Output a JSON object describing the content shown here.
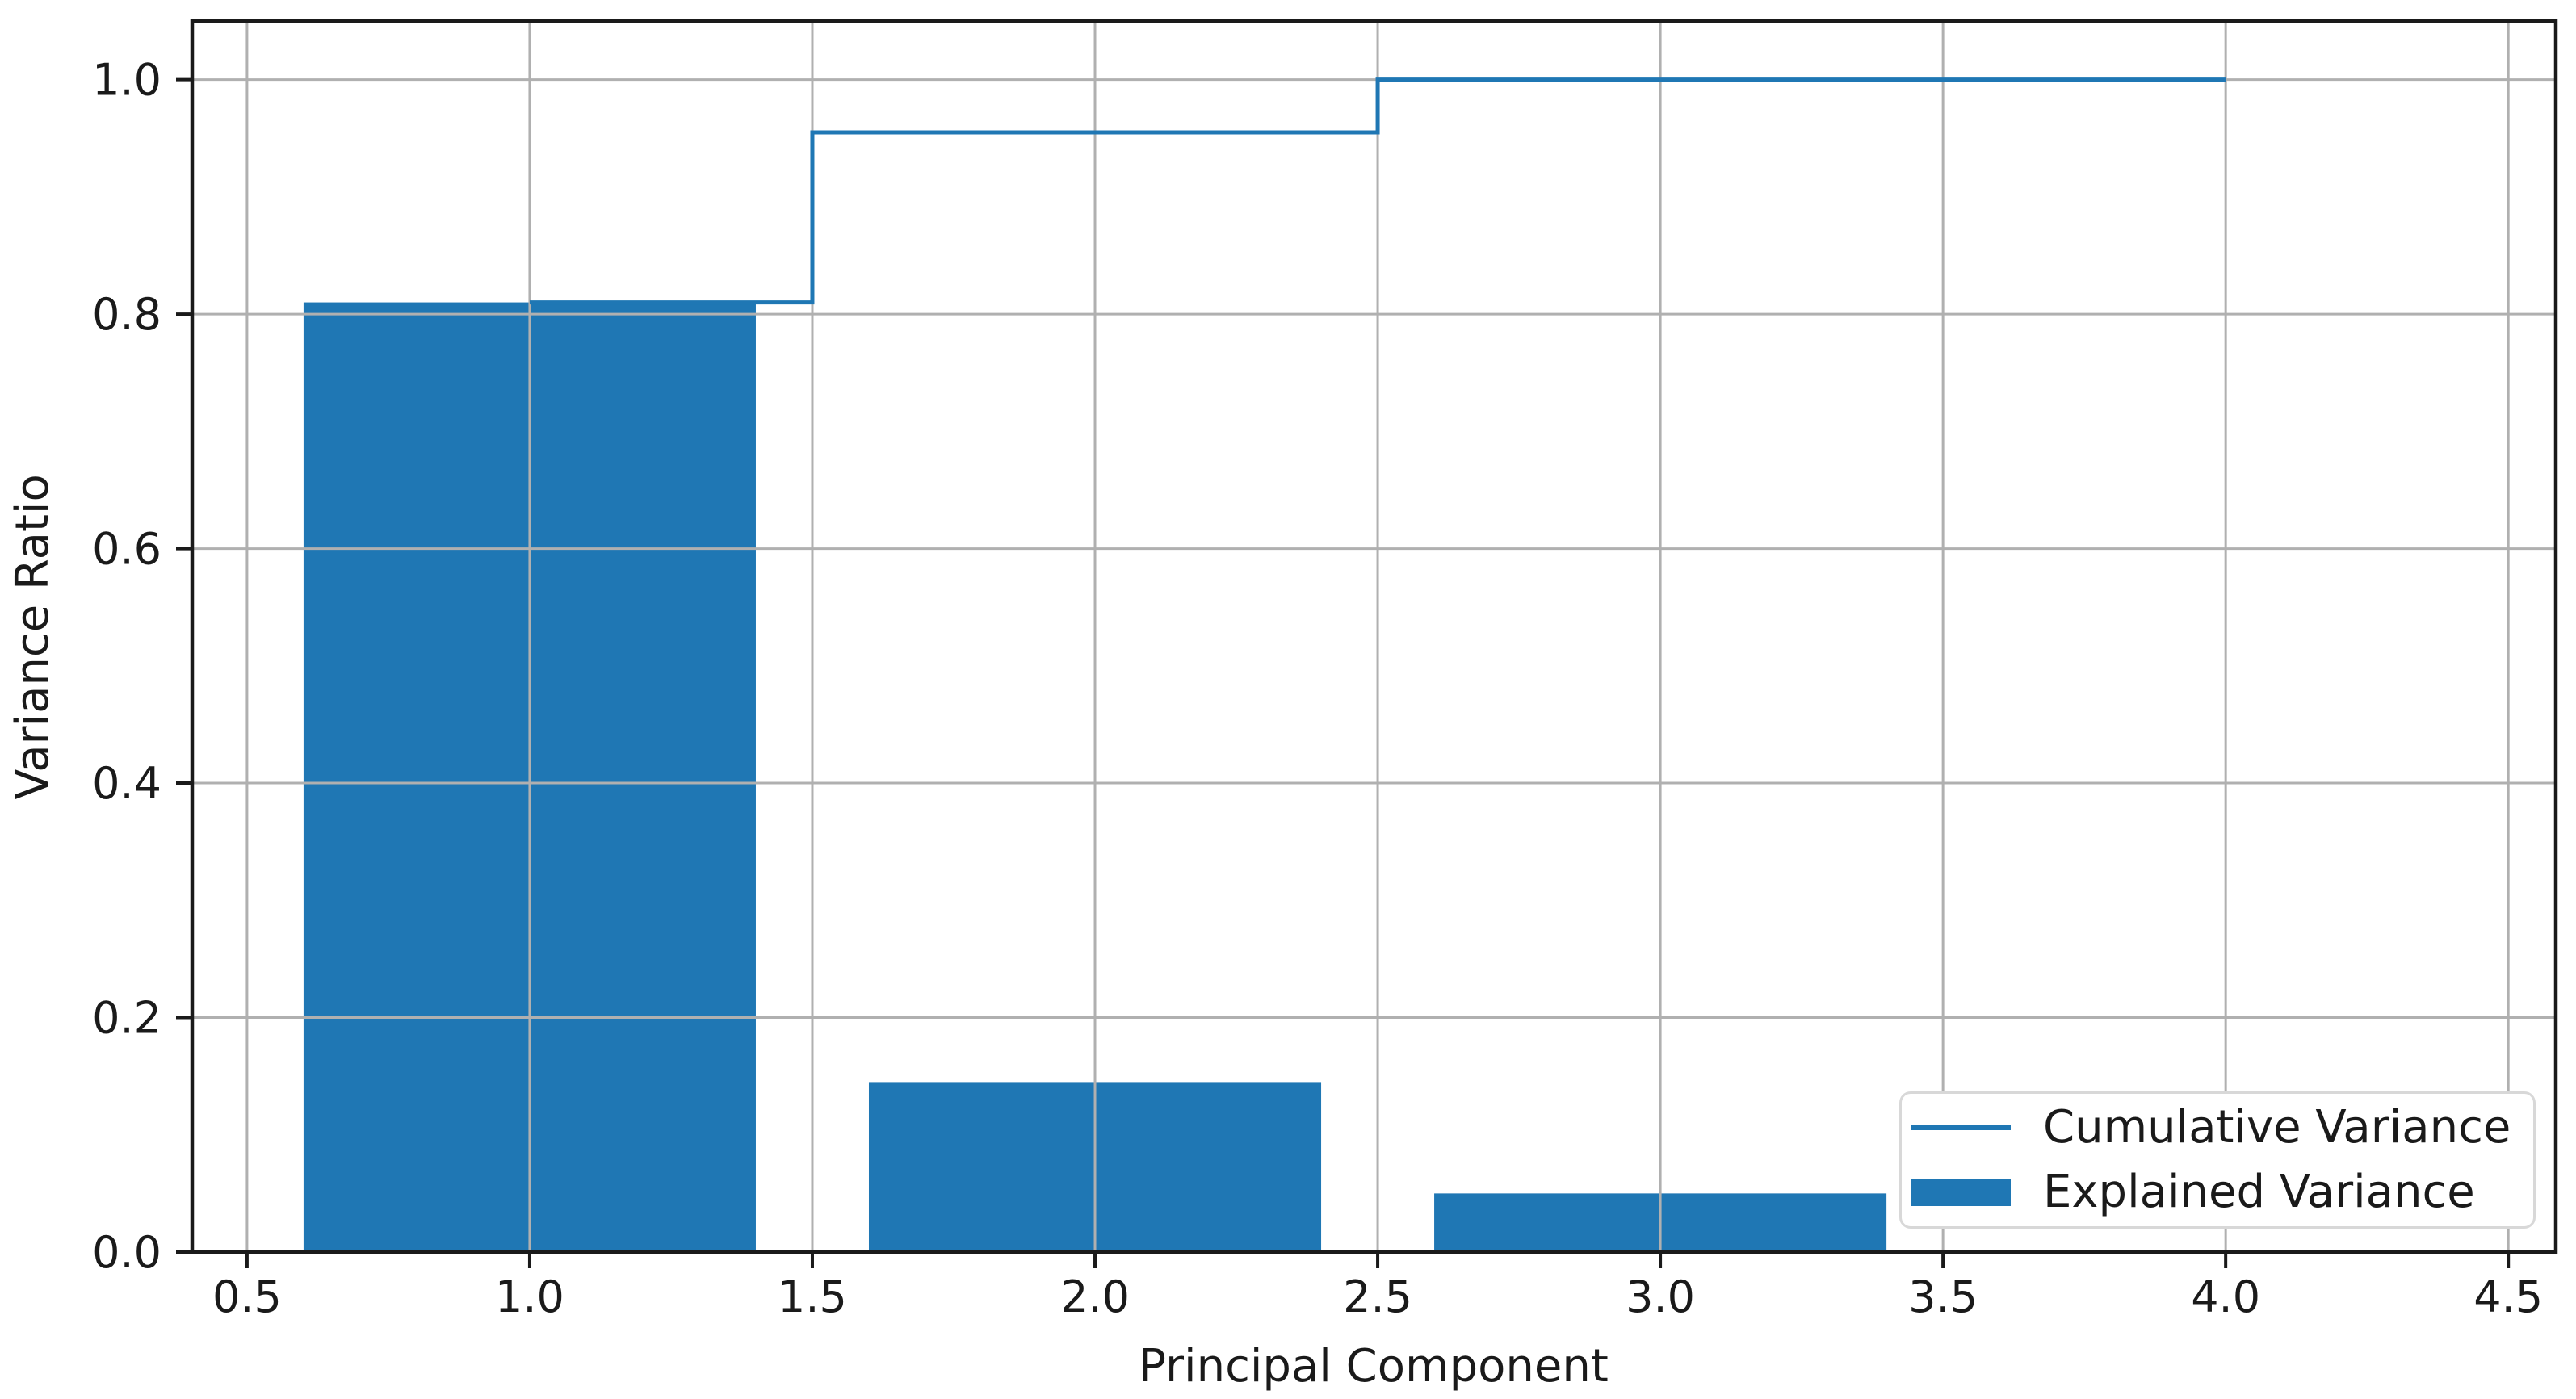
{
  "chart_data": {
    "type": "combo-bar-step",
    "title": "",
    "xlabel": "Principal Component",
    "ylabel": "Variance Ratio",
    "categories": [
      1,
      2,
      3,
      4
    ],
    "series": [
      {
        "name": "Cumulative Variance",
        "type": "step-line",
        "step_where": "mid",
        "color": "#1f77b4",
        "values": [
          0.81,
          0.955,
          1.0,
          1.0
        ]
      },
      {
        "name": "Explained Variance",
        "type": "bar",
        "color": "#1f77b4",
        "bar_width": 0.8,
        "values": [
          0.81,
          0.145,
          0.05,
          0.0
        ]
      }
    ],
    "xlim": [
      0.403,
      4.584
    ],
    "ylim": [
      0,
      1.05
    ],
    "xticks": [
      0.5,
      1.0,
      1.5,
      2.0,
      2.5,
      3.0,
      3.5,
      4.0,
      4.5
    ],
    "xtick_labels": [
      "0.5",
      "1.0",
      "1.5",
      "2.0",
      "2.5",
      "3.0",
      "3.5",
      "4.0",
      "4.5"
    ],
    "yticks": [
      0.0,
      0.2,
      0.4,
      0.6,
      0.8,
      1.0
    ],
    "ytick_labels": [
      "0.0",
      "0.2",
      "0.4",
      "0.6",
      "0.8",
      "1.0"
    ],
    "grid": true,
    "legend_position": "lower right",
    "colors": {
      "accent": "#1f77b4",
      "grid": "#b0b0b0",
      "spine": "#1a1a1a",
      "text": "#1a1a1a",
      "background": "#ffffff",
      "legend_border": "#d8d8d8"
    }
  }
}
